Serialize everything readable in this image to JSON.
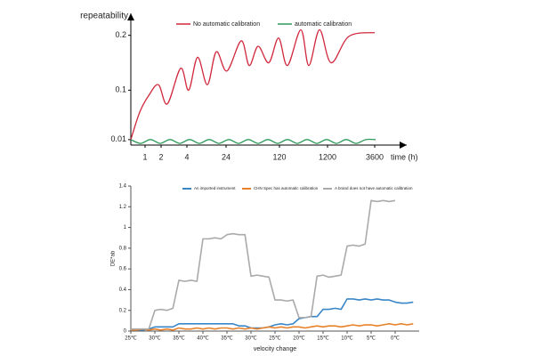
{
  "chart_data": [
    {
      "type": "line",
      "ylabel": "repeatability",
      "xlabel": "time (h)",
      "xlim": [
        0,
        310
      ],
      "ylim": [
        0,
        0.24
      ],
      "xticks": [
        {
          "value": 16,
          "label": "1"
        },
        {
          "value": 34,
          "label": "2"
        },
        {
          "value": 63,
          "label": "4"
        },
        {
          "value": 107,
          "label": "24"
        },
        {
          "value": 167,
          "label": "120"
        },
        {
          "value": 221,
          "label": "1200"
        },
        {
          "value": 274,
          "label": "3600"
        }
      ],
      "yticks": [
        0.01,
        0.1,
        0.2
      ],
      "grid": false,
      "legend": "top",
      "series": [
        {
          "name": "No automatic calibration",
          "color": "#d0283c",
          "x": [
            0,
            10,
            20,
            31,
            41,
            56,
            65,
            75,
            86,
            96,
            108,
            124,
            133,
            143,
            155,
            166,
            176,
            191,
            200,
            212,
            225,
            245,
            274
          ],
          "values": [
            0.01,
            0.06,
            0.09,
            0.11,
            0.075,
            0.14,
            0.1,
            0.16,
            0.11,
            0.17,
            0.135,
            0.19,
            0.145,
            0.18,
            0.15,
            0.195,
            0.145,
            0.21,
            0.145,
            0.21,
            0.15,
            0.198,
            0.205
          ]
        },
        {
          "name": "automatic calibration",
          "color": "#2e9a5a",
          "x": [
            0,
            11,
            22,
            33,
            44,
            55,
            66,
            77,
            88,
            99,
            110,
            121,
            132,
            143,
            154,
            165,
            176,
            187,
            198,
            209,
            220,
            231,
            242,
            253,
            264,
            275
          ],
          "values": [
            0.01,
            0.003,
            0.01,
            0.003,
            0.01,
            0.003,
            0.01,
            0.003,
            0.01,
            0.003,
            0.01,
            0.003,
            0.01,
            0.003,
            0.01,
            0.003,
            0.01,
            0.003,
            0.01,
            0.003,
            0.01,
            0.003,
            0.01,
            0.003,
            0.01,
            0.01
          ]
        }
      ]
    },
    {
      "type": "line",
      "ylabel": "DE*ab",
      "xlabel": "velocity change",
      "xlim": [
        0,
        12
      ],
      "ylim": [
        0,
        1.4
      ],
      "xticks": [
        {
          "value": 0,
          "label": "25℃"
        },
        {
          "value": 1,
          "label": "30℃"
        },
        {
          "value": 2,
          "label": "35℃"
        },
        {
          "value": 3,
          "label": "40℃"
        },
        {
          "value": 4,
          "label": "35℃"
        },
        {
          "value": 5,
          "label": "30℃"
        },
        {
          "value": 6,
          "label": "25℃"
        },
        {
          "value": 7,
          "label": "20℃"
        },
        {
          "value": 8,
          "label": "15℃"
        },
        {
          "value": 9,
          "label": "10℃"
        },
        {
          "value": 10,
          "label": "5℃"
        },
        {
          "value": 11,
          "label": "0℃"
        }
      ],
      "yticks": [
        0,
        0.2,
        0.4,
        0.6,
        0.8,
        1,
        1.2,
        1.4
      ],
      "grid": false,
      "legend": "top",
      "x": [
        0,
        0.25,
        0.5,
        0.75,
        1,
        1.25,
        1.5,
        1.75,
        2,
        2.25,
        2.5,
        2.75,
        3,
        3.25,
        3.5,
        3.75,
        4,
        4.25,
        4.5,
        4.75,
        5,
        5.25,
        5.5,
        5.75,
        6,
        6.25,
        6.5,
        6.75,
        7,
        7.25,
        7.5,
        7.75,
        8,
        8.25,
        8.5,
        8.75,
        9,
        9.25,
        9.5,
        9.75,
        10,
        10.25,
        10.5,
        10.75,
        11,
        11.25,
        11.5,
        11.75
      ],
      "series": [
        {
          "name": "An imported instrument",
          "color": "#3a87c8",
          "values": [
            0.01,
            0.01,
            0.01,
            0.02,
            0.04,
            0.04,
            0.04,
            0.04,
            0.07,
            0.07,
            0.07,
            0.07,
            0.07,
            0.07,
            0.07,
            0.07,
            0.07,
            0.07,
            0.05,
            0.05,
            0.03,
            0.03,
            0.03,
            0.04,
            0.06,
            0.07,
            0.06,
            0.07,
            0.12,
            0.13,
            0.14,
            0.14,
            0.21,
            0.21,
            0.22,
            0.21,
            0.31,
            0.31,
            0.3,
            0.31,
            0.3,
            0.31,
            0.3,
            0.3,
            0.28,
            0.27,
            0.27,
            0.28
          ]
        },
        {
          "name": "CHN Spec has automatic calibration",
          "color": "#e8822a",
          "values": [
            0.01,
            0.01,
            0.02,
            0.01,
            0.02,
            0.01,
            0.02,
            0.01,
            0.03,
            0.02,
            0.02,
            0.03,
            0.02,
            0.03,
            0.02,
            0.03,
            0.03,
            0.02,
            0.03,
            0.02,
            0.03,
            0.02,
            0.03,
            0.04,
            0.03,
            0.04,
            0.03,
            0.04,
            0.04,
            0.03,
            0.04,
            0.05,
            0.04,
            0.05,
            0.05,
            0.04,
            0.05,
            0.06,
            0.05,
            0.06,
            0.06,
            0.05,
            0.06,
            0.07,
            0.06,
            0.07,
            0.06,
            0.07
          ]
        },
        {
          "name": "A brand does not have automatic calibration",
          "color": "#aaaaaa",
          "values": [
            0.02,
            0.02,
            0.02,
            0.02,
            0.2,
            0.21,
            0.2,
            0.22,
            0.49,
            0.48,
            0.49,
            0.48,
            0.89,
            0.89,
            0.9,
            0.89,
            0.93,
            0.94,
            0.93,
            0.93,
            0.53,
            0.54,
            0.53,
            0.52,
            0.3,
            0.3,
            0.29,
            0.3,
            0.13,
            0.13,
            0.14,
            0.53,
            0.54,
            0.52,
            0.53,
            0.54,
            0.82,
            0.83,
            0.82,
            0.84,
            1.26,
            1.25,
            1.26,
            1.25,
            1.26,
            null,
            null,
            null
          ]
        }
      ]
    }
  ]
}
